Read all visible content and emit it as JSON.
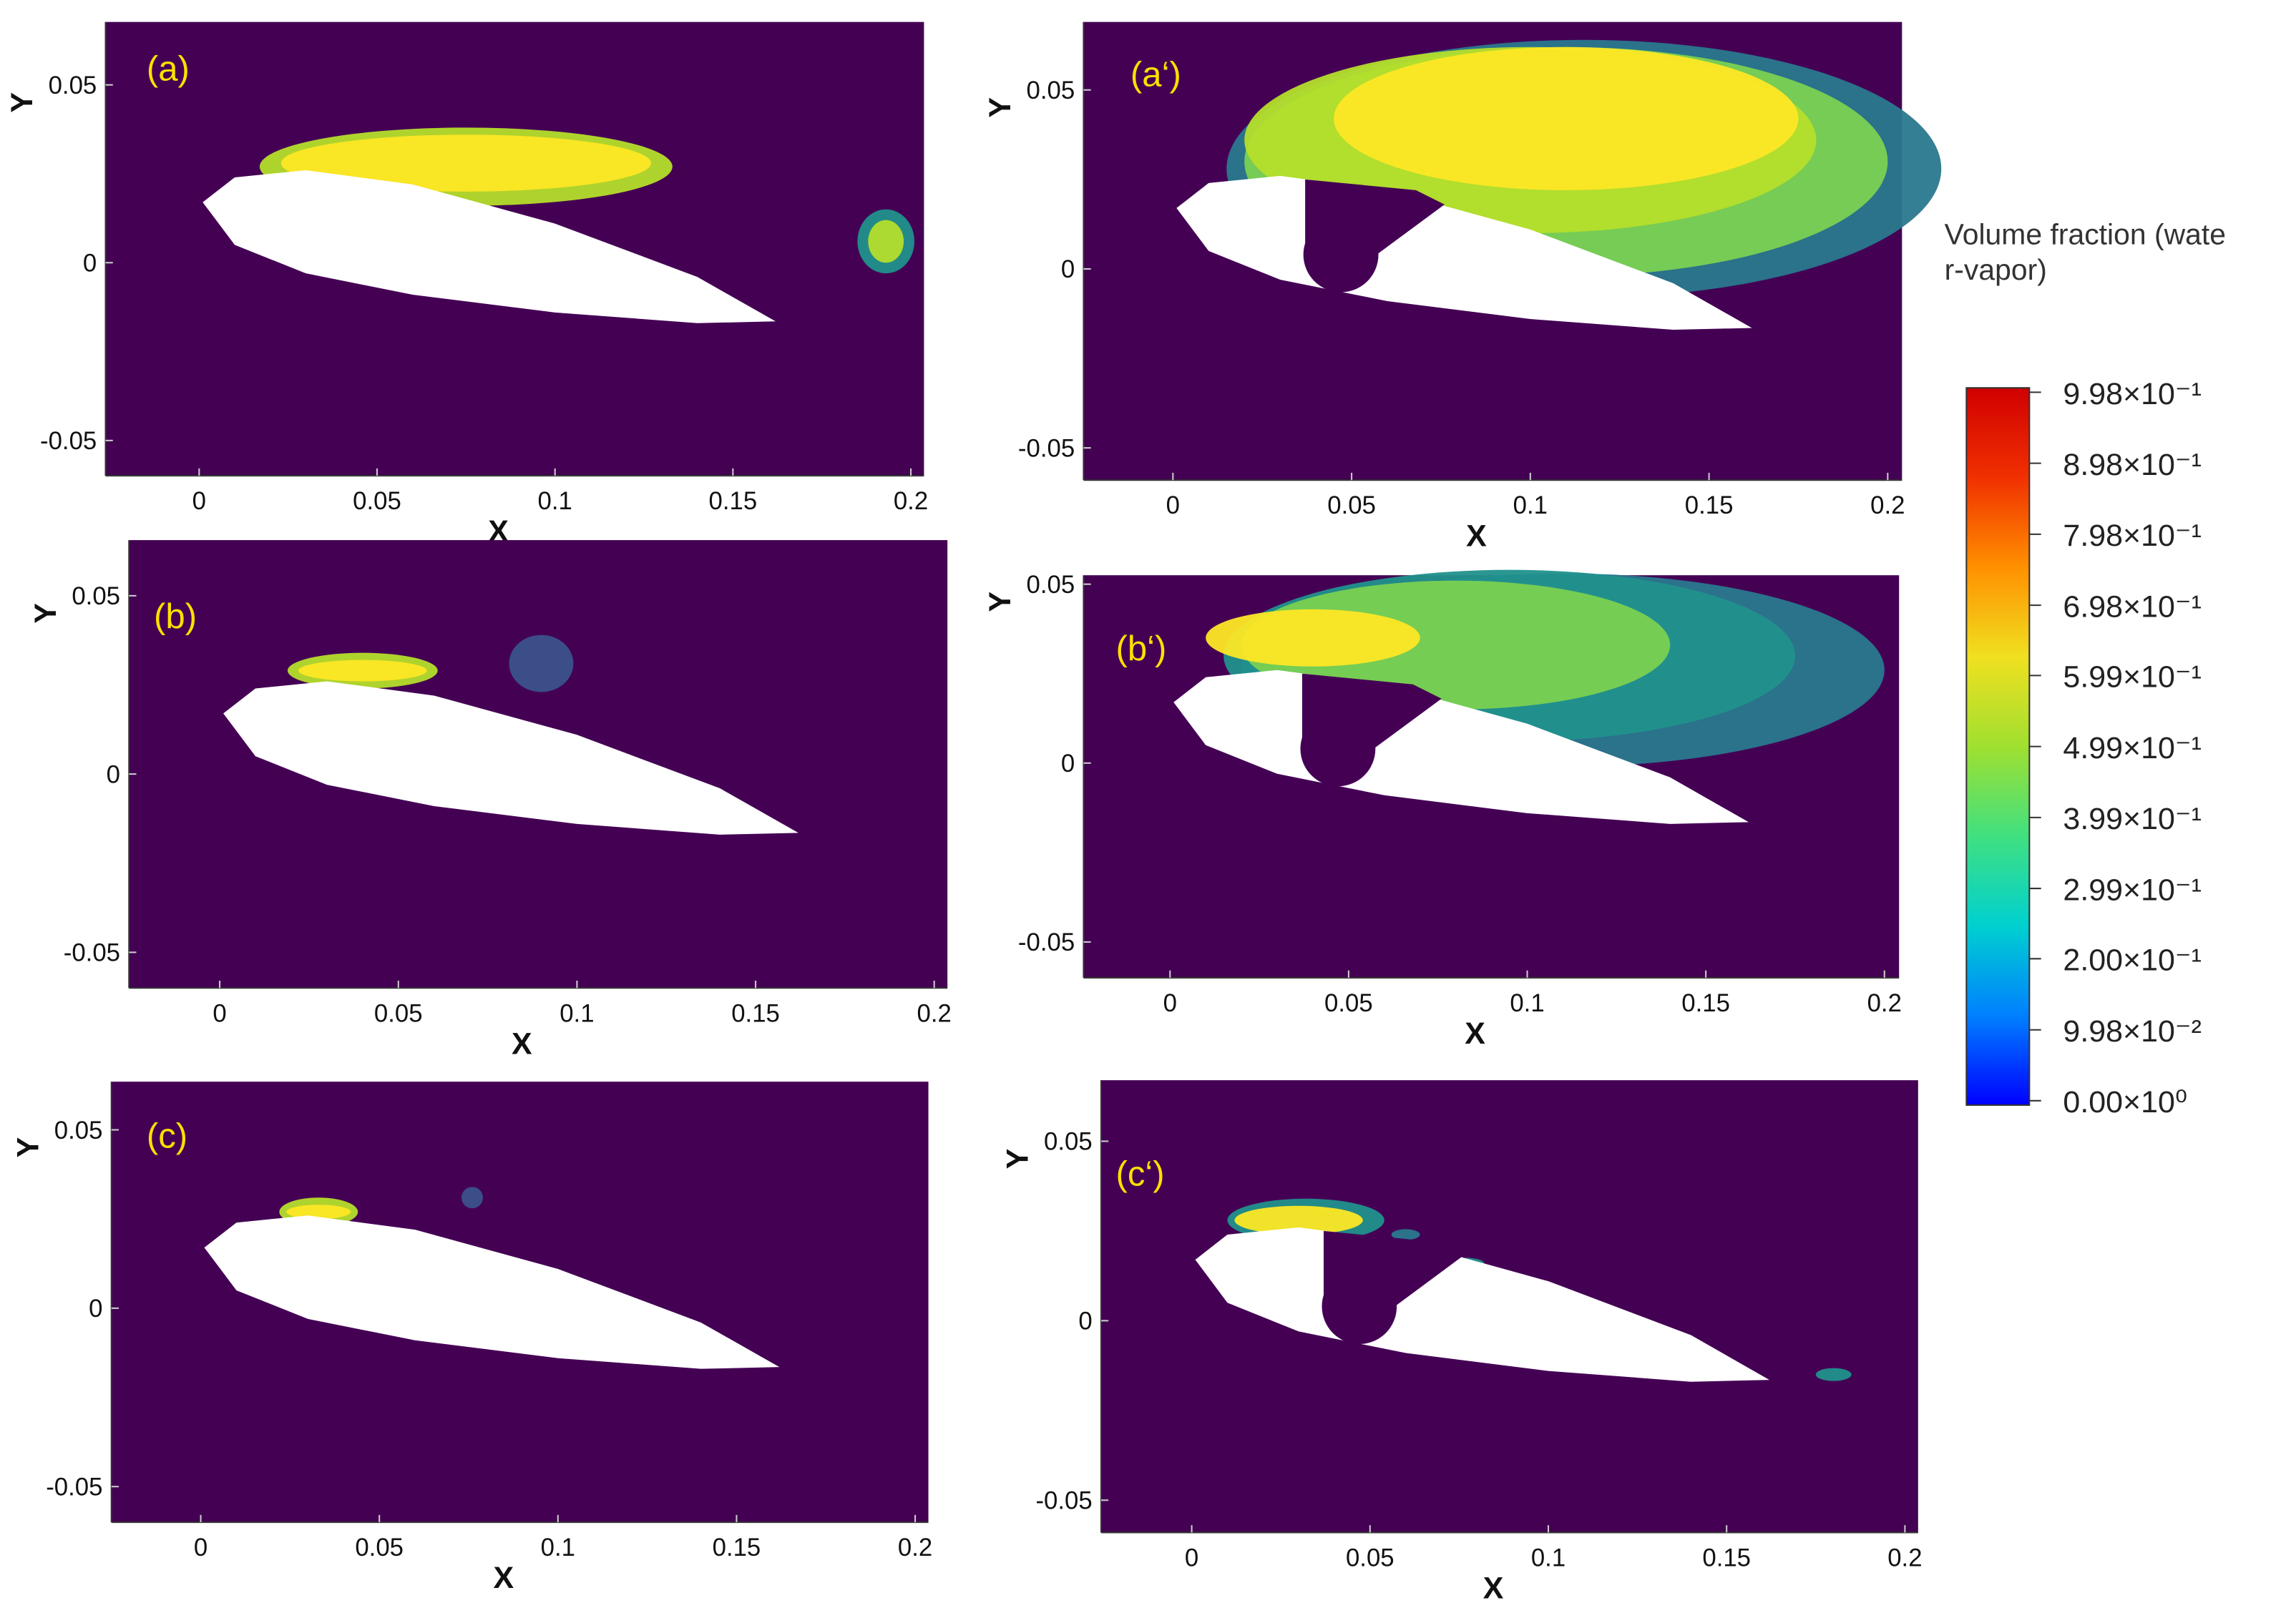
{
  "panels": [
    {
      "label": "(a)",
      "x_axis": "X",
      "y_axis": "Y",
      "xlim": [
        -0.0263,
        0.2037
      ],
      "ylim": [
        -0.0599,
        0.0677
      ],
      "xticks": [
        0,
        0.05,
        0.1,
        0.15,
        0.2
      ],
      "yticks": [
        -0.05,
        0,
        0.05
      ]
    },
    {
      "label": "(a‘)",
      "x_axis": "X",
      "y_axis": "Y",
      "xlim": [
        -0.025,
        0.204
      ],
      "ylim": [
        -0.059,
        0.069
      ],
      "xticks": [
        0,
        0.05,
        0.1,
        0.15,
        0.2
      ],
      "yticks": [
        -0.05,
        0,
        0.05
      ]
    },
    {
      "label": "(b)",
      "x_axis": "X",
      "y_axis": "Y",
      "xlim": [
        -0.0254,
        0.2037
      ],
      "ylim": [
        -0.06,
        0.0656
      ],
      "xticks": [
        0,
        0.05,
        0.1,
        0.15,
        0.2
      ],
      "yticks": [
        -0.05,
        0,
        0.05
      ]
    },
    {
      "label": "(b‘)",
      "x_axis": "X",
      "y_axis": "Y",
      "xlim": [
        -0.0242,
        0.2041
      ],
      "ylim": [
        -0.06,
        0.0525
      ],
      "xticks": [
        0,
        0.05,
        0.1,
        0.15,
        0.2
      ],
      "yticks": [
        -0.05,
        0,
        0.05
      ]
    },
    {
      "label": "(c)",
      "x_axis": "X",
      "y_axis": "Y",
      "xlim": [
        -0.025,
        0.2037
      ],
      "ylim": [
        -0.06,
        0.0635
      ],
      "xticks": [
        0,
        0.05,
        0.1,
        0.15,
        0.2
      ],
      "yticks": [
        -0.05,
        0,
        0.05
      ]
    },
    {
      "label": "(c‘)",
      "x_axis": "X",
      "y_axis": "Y",
      "xlim": [
        -0.0254,
        0.2037
      ],
      "ylim": [
        -0.059,
        0.067
      ],
      "xticks": [
        0,
        0.05,
        0.1,
        0.15,
        0.2
      ],
      "yticks": [
        -0.05,
        0,
        0.05
      ]
    }
  ],
  "colorbar": {
    "title": [
      "Volume fraction (wate",
      "r-vapor)"
    ],
    "clim": [
      0,
      0.998
    ],
    "colormap": [
      "#0000ff",
      "#0080ff",
      "#00d0d0",
      "#40e080",
      "#a0e030",
      "#f0e020",
      "#ff9000",
      "#f03000",
      "#d00000"
    ],
    "ticks": [
      {
        "value": 0.998,
        "label": "9.98×10⁻¹"
      },
      {
        "value": 0.898,
        "label": "8.98×10⁻¹"
      },
      {
        "value": 0.798,
        "label": "7.98×10⁻¹"
      },
      {
        "value": 0.698,
        "label": "6.98×10⁻¹"
      },
      {
        "value": 0.599,
        "label": "5.99×10⁻¹"
      },
      {
        "value": 0.499,
        "label": "4.99×10⁻¹"
      },
      {
        "value": 0.399,
        "label": "3.99×10⁻¹"
      },
      {
        "value": 0.299,
        "label": "2.99×10⁻¹"
      },
      {
        "value": 0.2,
        "label": "2.00×10⁻¹"
      },
      {
        "value": 0.0998,
        "label": "9.98×10⁻²"
      },
      {
        "value": 0,
        "label": "0.00×10⁰"
      }
    ]
  }
}
